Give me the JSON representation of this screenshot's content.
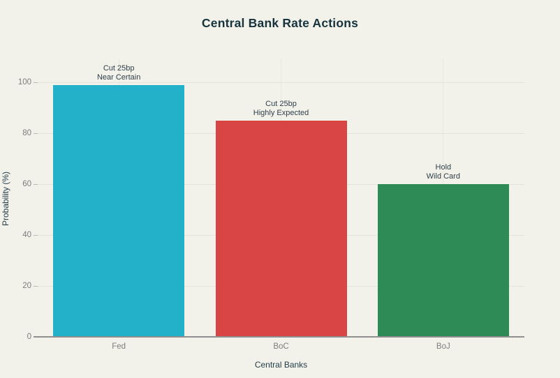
{
  "chart_data": {
    "type": "bar",
    "title": "Central Bank Rate Actions",
    "xlabel": "Central Banks",
    "ylabel": "Probability (%)",
    "categories": [
      "Fed",
      "BoC",
      "BoJ"
    ],
    "values": [
      99,
      85,
      60
    ],
    "bar_colors": [
      "#23b1c9",
      "#d94545",
      "#2e8b56"
    ],
    "annotations": [
      {
        "lines": [
          "Cut 25bp",
          "Near Certain"
        ]
      },
      {
        "lines": [
          "Cut 25bp",
          "Highly Expected"
        ]
      },
      {
        "lines": [
          "Hold",
          "Wild Card"
        ]
      }
    ],
    "yticks": [
      0,
      20,
      40,
      60,
      80,
      100
    ],
    "ylim": [
      0,
      109
    ],
    "grid": true,
    "legend_position": "none"
  },
  "colors": {
    "background": "#f2f1ea",
    "title_text": "#17333d",
    "axis_title_text": "#243e4a",
    "annotation_text": "#2f3f4a",
    "tick_text": "#7d7d7d",
    "gridline": "#e3e3db",
    "vertical_gridline": "#e7e7e0",
    "tick_mark": "#b9b9b3",
    "axis_line": "#8f8f8f"
  }
}
